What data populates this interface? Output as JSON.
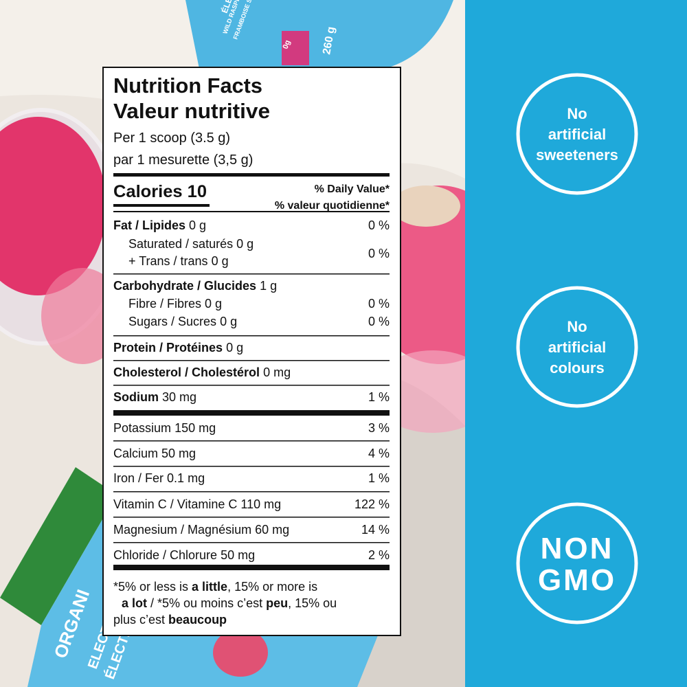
{
  "product_image": {
    "jar_texts": [
      "ÉLEC",
      "WILD RASPB",
      "FRAMBOISE SAUV",
      "0g",
      "260 g",
      "ORGANI",
      "ELECTROLY",
      "ÉLECTROLYTE"
    ],
    "nutrition_label": {
      "title": "Nutrition Facts",
      "title_fr": "Valeur nutritive",
      "serving": "Per 1 scoop (3.5 g)",
      "serving_fr": "par 1 mesurette (3,5 g)",
      "calories": "Calories 10",
      "daily_value": "% Daily Value*",
      "daily_value_fr": "% valeur quotidienne*",
      "rows": [
        {
          "name": "Fat / Lipides",
          "amount": "0 g",
          "dv": "0 %",
          "bold": true
        },
        {
          "name": "Saturated / saturés",
          "amount": "0 g",
          "indent": true
        },
        {
          "name": "+ Trans / trans",
          "amount": "0 g",
          "dv": "0 %",
          "indent": true
        },
        {
          "name": "Carbohydrate / Glucides",
          "amount": "1 g",
          "bold": true
        },
        {
          "name": "Fibre / Fibres",
          "amount": "0 g",
          "dv": "0 %",
          "indent": true
        },
        {
          "name": "Sugars / Sucres",
          "amount": "0 g",
          "dv": "0 %",
          "indent": true
        },
        {
          "name": "Protein / Protéines",
          "amount": "0 g",
          "bold": true
        },
        {
          "name": "Cholesterol / Cholestérol",
          "amount": "0 mg",
          "bold": true
        },
        {
          "name": "Sodium",
          "amount": "30 mg",
          "dv": "1 %",
          "bold": true
        },
        {
          "name": "Potassium",
          "amount": "150 mg",
          "dv": "3 %"
        },
        {
          "name": "Calcium",
          "amount": "50 mg",
          "dv": "4 %"
        },
        {
          "name": "Iron / Fer",
          "amount": "0.1 mg",
          "dv": "1 %"
        },
        {
          "name": "Vitamin C / Vitamine C",
          "amount": "110 mg",
          "dv": "122 %"
        },
        {
          "name": "Magnesium / Magnésium",
          "amount": "60 mg",
          "dv": "14 %"
        },
        {
          "name": "Chloride / Chlorure",
          "amount": "50 mg",
          "dv": "2 %"
        }
      ],
      "footnote": [
        [
          {
            "text": "*5% or less is "
          },
          {
            "text": "a little",
            "bold": true
          },
          {
            "text": ", 15% or more is"
          }
        ],
        [
          {
            "text": "a lot",
            "bold": true
          },
          {
            "text": " / *5% ou moins c’est "
          },
          {
            "text": "peu",
            "bold": true
          },
          {
            "text": ", 15% ou"
          }
        ],
        [
          {
            "text": "plus c’est "
          },
          {
            "text": "beaucoup",
            "bold": true
          }
        ]
      ]
    },
    "badges": [
      {
        "lines": [
          "No",
          "artificial",
          "sweeteners"
        ]
      },
      {
        "lines": [
          "No",
          "artificial",
          "colours"
        ]
      },
      {
        "lines": [
          "NON",
          "GMO"
        ],
        "large": true
      }
    ]
  }
}
